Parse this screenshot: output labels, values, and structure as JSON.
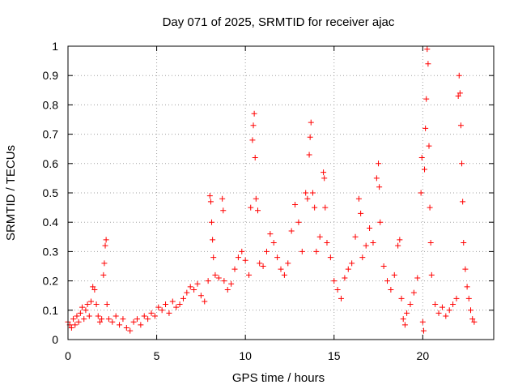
{
  "chart_data": {
    "type": "scatter",
    "title": "Day 071 of 2025, SRMTID for receiver ajac",
    "xlabel": "GPS time / hours",
    "ylabel": "SRMTID / TECUs",
    "xlim": [
      0,
      24
    ],
    "ylim": [
      0,
      1
    ],
    "xticks": [
      0,
      5,
      10,
      15,
      20
    ],
    "xtick_labels": [
      "0",
      "5",
      "10",
      "15",
      "20"
    ],
    "yticks": [
      0,
      0.1,
      0.2,
      0.3,
      0.4,
      0.5,
      0.6,
      0.7,
      0.8,
      0.9,
      1
    ],
    "ytick_labels": [
      "0",
      "0.1",
      "0.2",
      "0.3",
      "0.4",
      "0.5",
      "0.6",
      "0.7",
      "0.8",
      "0.9",
      "1"
    ],
    "grid": true,
    "marker": "+",
    "color": "#ff0000",
    "series": [
      {
        "name": "SRMTID",
        "points": [
          [
            0.0,
            0.06
          ],
          [
            0.1,
            0.05
          ],
          [
            0.2,
            0.04
          ],
          [
            0.3,
            0.07
          ],
          [
            0.4,
            0.05
          ],
          [
            0.5,
            0.08
          ],
          [
            0.6,
            0.06
          ],
          [
            0.7,
            0.09
          ],
          [
            0.8,
            0.11
          ],
          [
            0.9,
            0.07
          ],
          [
            1.0,
            0.1
          ],
          [
            1.1,
            0.12
          ],
          [
            1.2,
            0.08
          ],
          [
            1.3,
            0.13
          ],
          [
            1.4,
            0.18
          ],
          [
            1.5,
            0.17
          ],
          [
            1.6,
            0.12
          ],
          [
            1.7,
            0.08
          ],
          [
            1.8,
            0.06
          ],
          [
            1.9,
            0.07
          ],
          [
            2.0,
            0.22
          ],
          [
            2.05,
            0.26
          ],
          [
            2.1,
            0.32
          ],
          [
            2.15,
            0.34
          ],
          [
            2.2,
            0.12
          ],
          [
            2.3,
            0.07
          ],
          [
            2.5,
            0.06
          ],
          [
            2.7,
            0.08
          ],
          [
            2.9,
            0.05
          ],
          [
            3.1,
            0.07
          ],
          [
            3.3,
            0.04
          ],
          [
            3.5,
            0.03
          ],
          [
            3.7,
            0.06
          ],
          [
            3.9,
            0.07
          ],
          [
            4.1,
            0.05
          ],
          [
            4.3,
            0.08
          ],
          [
            4.5,
            0.07
          ],
          [
            4.7,
            0.09
          ],
          [
            4.9,
            0.08
          ],
          [
            5.1,
            0.11
          ],
          [
            5.3,
            0.1
          ],
          [
            5.5,
            0.12
          ],
          [
            5.7,
            0.09
          ],
          [
            5.9,
            0.13
          ],
          [
            6.1,
            0.11
          ],
          [
            6.3,
            0.12
          ],
          [
            6.5,
            0.14
          ],
          [
            6.7,
            0.16
          ],
          [
            6.9,
            0.18
          ],
          [
            7.1,
            0.17
          ],
          [
            7.3,
            0.19
          ],
          [
            7.5,
            0.15
          ],
          [
            7.7,
            0.13
          ],
          [
            7.9,
            0.2
          ],
          [
            8.0,
            0.49
          ],
          [
            8.05,
            0.47
          ],
          [
            8.1,
            0.4
          ],
          [
            8.15,
            0.34
          ],
          [
            8.2,
            0.28
          ],
          [
            8.3,
            0.22
          ],
          [
            8.5,
            0.21
          ],
          [
            8.7,
            0.48
          ],
          [
            8.75,
            0.44
          ],
          [
            8.8,
            0.2
          ],
          [
            9.0,
            0.17
          ],
          [
            9.2,
            0.19
          ],
          [
            9.4,
            0.24
          ],
          [
            9.6,
            0.28
          ],
          [
            9.8,
            0.3
          ],
          [
            10.0,
            0.27
          ],
          [
            10.2,
            0.22
          ],
          [
            10.3,
            0.45
          ],
          [
            10.4,
            0.68
          ],
          [
            10.45,
            0.73
          ],
          [
            10.5,
            0.77
          ],
          [
            10.55,
            0.62
          ],
          [
            10.6,
            0.48
          ],
          [
            10.7,
            0.44
          ],
          [
            10.8,
            0.26
          ],
          [
            11.0,
            0.25
          ],
          [
            11.2,
            0.3
          ],
          [
            11.4,
            0.36
          ],
          [
            11.6,
            0.33
          ],
          [
            11.8,
            0.28
          ],
          [
            12.0,
            0.24
          ],
          [
            12.2,
            0.22
          ],
          [
            12.4,
            0.26
          ],
          [
            12.6,
            0.37
          ],
          [
            12.8,
            0.46
          ],
          [
            13.0,
            0.4
          ],
          [
            13.2,
            0.3
          ],
          [
            13.4,
            0.5
          ],
          [
            13.5,
            0.48
          ],
          [
            13.6,
            0.63
          ],
          [
            13.65,
            0.69
          ],
          [
            13.7,
            0.74
          ],
          [
            13.8,
            0.5
          ],
          [
            13.9,
            0.45
          ],
          [
            14.0,
            0.3
          ],
          [
            14.2,
            0.35
          ],
          [
            14.4,
            0.57
          ],
          [
            14.45,
            0.55
          ],
          [
            14.5,
            0.45
          ],
          [
            14.6,
            0.33
          ],
          [
            14.8,
            0.28
          ],
          [
            15.0,
            0.2
          ],
          [
            15.2,
            0.17
          ],
          [
            15.4,
            0.14
          ],
          [
            15.6,
            0.21
          ],
          [
            15.8,
            0.24
          ],
          [
            16.0,
            0.26
          ],
          [
            16.2,
            0.35
          ],
          [
            16.4,
            0.48
          ],
          [
            16.5,
            0.43
          ],
          [
            16.6,
            0.28
          ],
          [
            16.8,
            0.32
          ],
          [
            17.0,
            0.38
          ],
          [
            17.2,
            0.33
          ],
          [
            17.4,
            0.55
          ],
          [
            17.5,
            0.6
          ],
          [
            17.55,
            0.52
          ],
          [
            17.6,
            0.4
          ],
          [
            17.8,
            0.25
          ],
          [
            18.0,
            0.2
          ],
          [
            18.2,
            0.17
          ],
          [
            18.4,
            0.22
          ],
          [
            18.6,
            0.32
          ],
          [
            18.7,
            0.34
          ],
          [
            18.8,
            0.14
          ],
          [
            18.9,
            0.07
          ],
          [
            19.0,
            0.05
          ],
          [
            19.1,
            0.09
          ],
          [
            19.3,
            0.12
          ],
          [
            19.5,
            0.16
          ],
          [
            19.7,
            0.21
          ],
          [
            19.9,
            0.5
          ],
          [
            19.95,
            0.62
          ],
          [
            20.0,
            0.06
          ],
          [
            20.05,
            0.03
          ],
          [
            20.1,
            0.58
          ],
          [
            20.15,
            0.72
          ],
          [
            20.2,
            0.82
          ],
          [
            20.25,
            0.99
          ],
          [
            20.3,
            0.94
          ],
          [
            20.35,
            0.66
          ],
          [
            20.4,
            0.45
          ],
          [
            20.45,
            0.33
          ],
          [
            20.5,
            0.22
          ],
          [
            20.7,
            0.12
          ],
          [
            20.9,
            0.09
          ],
          [
            21.1,
            0.11
          ],
          [
            21.3,
            0.08
          ],
          [
            21.5,
            0.1
          ],
          [
            21.7,
            0.12
          ],
          [
            21.9,
            0.14
          ],
          [
            22.0,
            0.83
          ],
          [
            22.05,
            0.9
          ],
          [
            22.1,
            0.84
          ],
          [
            22.15,
            0.73
          ],
          [
            22.2,
            0.6
          ],
          [
            22.25,
            0.47
          ],
          [
            22.3,
            0.33
          ],
          [
            22.4,
            0.24
          ],
          [
            22.5,
            0.18
          ],
          [
            22.6,
            0.14
          ],
          [
            22.7,
            0.1
          ],
          [
            22.8,
            0.07
          ],
          [
            22.9,
            0.06
          ]
        ]
      }
    ]
  }
}
